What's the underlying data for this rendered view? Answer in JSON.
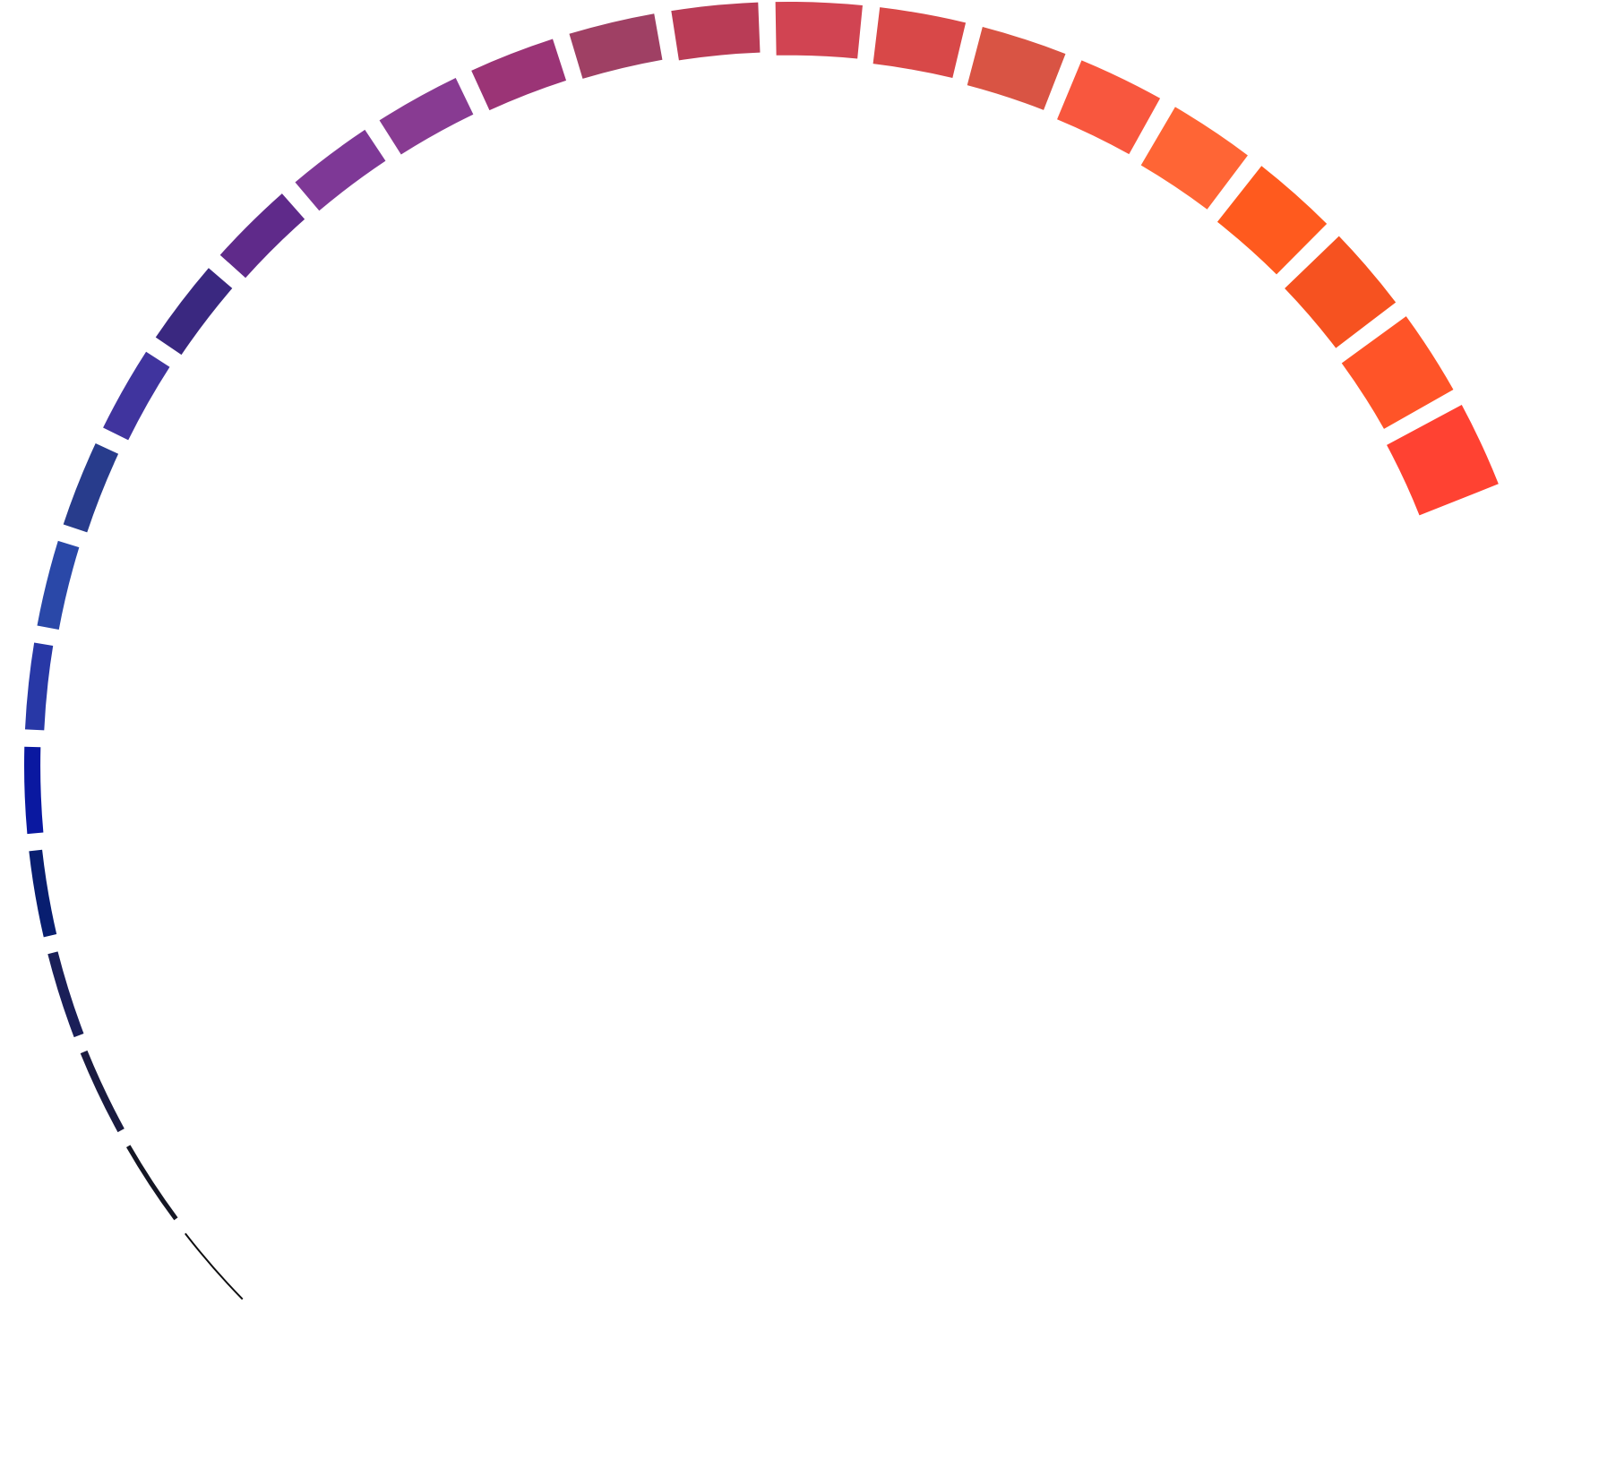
{
  "graphic": {
    "shape": "segmented arc ring",
    "segment_count": 26,
    "gap_color": "#ffffff",
    "colors": [
      "#ff4232",
      "#ff5428",
      "#f65220",
      "#ff5a1e",
      "#ff6535",
      "#f8573e",
      "#d95444",
      "#d84848",
      "#d14452",
      "#b93c56",
      "#9f4064",
      "#9b3476",
      "#883b92",
      "#7e3896",
      "#5f2a8a",
      "#3a2880",
      "#40349e",
      "#283c8c",
      "#2a48a8",
      "#2838a6",
      "#0a18a0",
      "#081e70",
      "#1a1f58",
      "#1a1b40",
      "#141624",
      "#0e0e10"
    ]
  }
}
